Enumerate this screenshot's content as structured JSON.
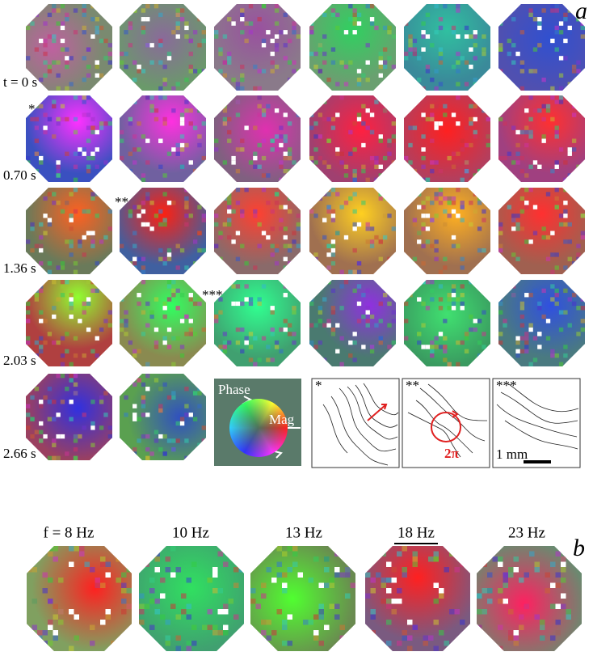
{
  "panel_a": {
    "label": "a",
    "time_labels": [
      "t = 0 s",
      "0.70 s",
      "1.36 s",
      "2.03 s",
      "2.66 s"
    ],
    "markers": [
      "*",
      "**",
      "***"
    ],
    "legend": {
      "phase": "Phase",
      "mag": "Mag"
    },
    "insets": [
      {
        "marker": "*"
      },
      {
        "marker": "**",
        "annotation": "2π"
      },
      {
        "marker": "***",
        "scale": "1 mm"
      }
    ]
  },
  "panel_b": {
    "label": "b",
    "frequencies": [
      "f = 8 Hz",
      "10 Hz",
      "13 Hz",
      "18 Hz",
      "23 Hz"
    ]
  }
}
